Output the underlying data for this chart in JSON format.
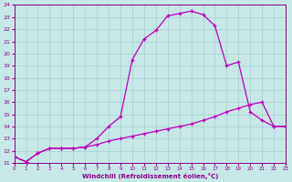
{
  "xlabel": "Windchill (Refroidissement éolien,°C)",
  "line1_x": [
    0,
    1,
    2,
    3,
    4,
    5,
    6,
    7,
    8,
    9,
    10,
    11,
    12,
    13,
    14,
    15,
    16,
    17,
    18,
    19,
    20,
    21,
    22,
    23
  ],
  "line1_y": [
    11.5,
    11.1,
    11.8,
    12.2,
    12.2,
    12.2,
    12.3,
    13.0,
    14.0,
    14.8,
    19.5,
    21.2,
    21.9,
    23.1,
    23.3,
    23.5,
    23.2,
    22.3,
    19.0,
    19.3,
    15.2,
    14.5,
    14.0,
    14.0
  ],
  "line2_x": [
    0,
    1,
    2,
    3,
    4,
    5,
    6,
    7,
    8,
    9,
    10,
    11,
    12,
    13,
    14,
    15,
    16,
    17,
    18,
    19,
    20,
    21,
    22,
    23
  ],
  "line2_y": [
    11.5,
    11.1,
    11.8,
    12.2,
    12.2,
    12.2,
    12.3,
    12.5,
    12.8,
    13.0,
    13.2,
    13.4,
    13.6,
    13.8,
    14.0,
    14.2,
    14.5,
    14.8,
    15.2,
    15.5,
    15.8,
    16.0,
    14.0,
    14.0
  ],
  "line_color": "#bb00bb",
  "bg_color": "#c8e8e8",
  "grid_color": "#a8cece",
  "tick_color": "#880088",
  "ylim": [
    11,
    24
  ],
  "xlim": [
    0,
    23
  ],
  "yticks": [
    11,
    12,
    13,
    14,
    15,
    16,
    17,
    18,
    19,
    20,
    21,
    22,
    23,
    24
  ],
  "xticks": [
    0,
    1,
    2,
    3,
    4,
    5,
    6,
    7,
    8,
    9,
    10,
    11,
    12,
    13,
    14,
    15,
    16,
    17,
    18,
    19,
    20,
    21,
    22,
    23
  ]
}
